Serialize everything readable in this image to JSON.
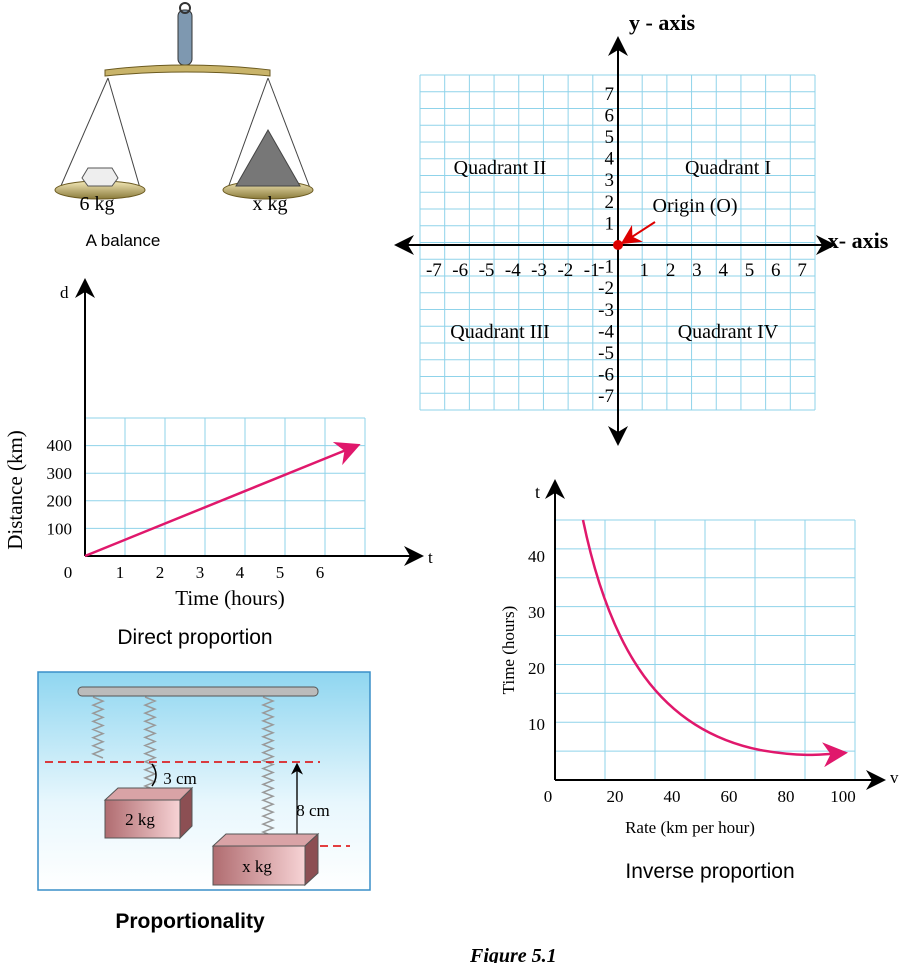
{
  "balance": {
    "left_label": "6 kg",
    "right_label": "x kg",
    "caption": "A balance"
  },
  "coordinate_plane": {
    "y_axis_label": "y - axis",
    "x_axis_label": "x- axis",
    "quadrants": [
      "Quadrant II",
      "Quadrant I",
      "Quadrant III",
      "Quadrant IV"
    ],
    "origin_label": "Origin (O)",
    "x_ticks": [
      -7,
      -6,
      -5,
      -4,
      -3,
      -2,
      -1,
      1,
      2,
      3,
      4,
      5,
      6,
      7
    ],
    "y_ticks": [
      7,
      6,
      5,
      4,
      3,
      2,
      1,
      -1,
      -2,
      -3,
      -4,
      -5,
      -6,
      -7
    ]
  },
  "direct_graph": {
    "y_axis_letter": "d",
    "x_axis_letter": "t",
    "y_label": "Distance (km)",
    "x_label": "Time (hours)",
    "y_ticks": [
      100,
      200,
      300,
      400
    ],
    "x_ticks": [
      0,
      1,
      2,
      3,
      4,
      5,
      6
    ],
    "caption": "Direct proportion"
  },
  "inverse_graph": {
    "y_axis_letter": "t",
    "x_axis_letter": "v",
    "y_label": "Time (hours)",
    "x_label": "Rate (km per hour)",
    "y_ticks": [
      10,
      20,
      30,
      40
    ],
    "x_ticks": [
      0,
      20,
      40,
      60,
      80,
      100
    ],
    "caption": "Inverse proportion"
  },
  "springs": {
    "small_stretch": "3 cm",
    "large_stretch": "8 cm",
    "small_mass": "2 kg",
    "large_mass": "x kg",
    "caption": "Proportionality"
  },
  "figure_label": "Figure 5.1"
}
